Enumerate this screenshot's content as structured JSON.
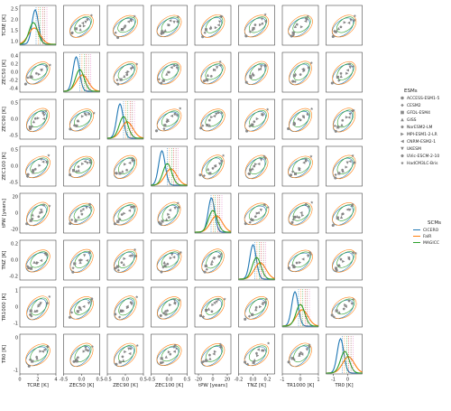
{
  "chart_data": {
    "type": "scatter",
    "variables": [
      {
        "key": "TCRE",
        "label": "TCRE [K]",
        "range": [
          0,
          4
        ],
        "ticks": [
          0,
          2,
          4
        ]
      },
      {
        "key": "ZEC50",
        "label": "ZEC50 [K]",
        "range": [
          -0.5,
          0.5
        ],
        "ticks": [
          -0.5,
          0.0,
          0.5
        ]
      },
      {
        "key": "ZEC90",
        "label": "ZEC90 [K]",
        "range": [
          -0.5,
          0.5
        ],
        "ticks": [
          -0.5,
          0.0,
          0.5
        ]
      },
      {
        "key": "ZEC100",
        "label": "ZEC100 [K]",
        "range": [
          -0.5,
          0.5
        ],
        "ticks": [
          -0.5,
          0.0,
          0.5
        ]
      },
      {
        "key": "tPW",
        "label": "tPW [years]",
        "range": [
          -25,
          25
        ],
        "ticks": [
          -20,
          0,
          20
        ]
      },
      {
        "key": "TNZ",
        "label": "TNZ [K]",
        "range": [
          -0.2,
          0.3
        ],
        "ticks": [
          -0.2,
          0.0,
          0.2
        ]
      },
      {
        "key": "TR1000",
        "label": "TR1000 [K]",
        "range": [
          -1,
          1
        ],
        "ticks": [
          -1,
          0,
          1
        ]
      },
      {
        "key": "TR0",
        "label": "TR0 [K]",
        "range": [
          -1.5,
          1
        ],
        "ticks": [
          -1,
          0
        ]
      }
    ],
    "y_ticks_first_row": [
      "2.5",
      "2.0",
      "1.5",
      "1.0"
    ],
    "y_ticks_zec50": [
      "0.4",
      "0.2",
      "0.0",
      "-0.2",
      "-0.4"
    ],
    "y_ticks_zec90": [
      "0.5",
      "0.0",
      "-0.5"
    ],
    "y_ticks_zec100": [
      "0.5",
      "0.0",
      "-0.5"
    ],
    "y_ticks_tpw": [
      "20",
      "0",
      "-20"
    ],
    "y_ticks_tnz": [
      "0.2",
      "0.0",
      "-0.2"
    ],
    "y_ticks_tr1000": [
      "1",
      "0",
      "-1"
    ],
    "y_ticks_tr0": [
      "0",
      "-1"
    ],
    "esm_legend": {
      "title": "ESMs",
      "entries": [
        "ACCESS-ESM1-5",
        "CESM2",
        "GFDL-ESM4",
        "GISS",
        "NorESM2-LM",
        "MPI-ESM1-2-LR",
        "CNRM-ESM2-1",
        "UKESM",
        "UVic-ESCM-2-10",
        "HadCM3LC-Bris"
      ],
      "markers": [
        "circle",
        "diamond",
        "square",
        "triangle-up",
        "pentagon",
        "triangle-right",
        "triangle-left",
        "triangle-down",
        "hexagon",
        "star"
      ],
      "marker_color": "#8a8a8a"
    },
    "scm_legend": {
      "title": "SCMs",
      "entries": [
        "CICERO",
        "FaIR",
        "MAGICC"
      ],
      "colors": [
        "#1f77b4",
        "#ff7f0e",
        "#2ca02c"
      ]
    },
    "distribution_peaks": {
      "TCRE": {
        "CICERO": 1.7,
        "FaIR": 1.6,
        "MAGICC": 1.5
      },
      "ZEC50": {
        "CICERO": -0.15,
        "FaIR": 0.02,
        "MAGICC": -0.05
      },
      "ZEC90": {
        "CICERO": -0.15,
        "FaIR": 0.05,
        "MAGICC": -0.05
      },
      "ZEC100": {
        "CICERO": -0.2,
        "FaIR": 0.05,
        "MAGICC": -0.05
      },
      "tPW": {
        "CICERO": -2,
        "FaIR": 5,
        "MAGICC": 0
      },
      "TNZ": {
        "CICERO": 0.0,
        "FaIR": 0.1,
        "MAGICC": 0.05
      },
      "TR1000": {
        "CICERO": -0.3,
        "FaIR": 0.1,
        "MAGICC": 0.0
      },
      "TR0": {
        "CICERO": -0.5,
        "FaIR": 0.05,
        "MAGICC": -0.2
      }
    }
  }
}
